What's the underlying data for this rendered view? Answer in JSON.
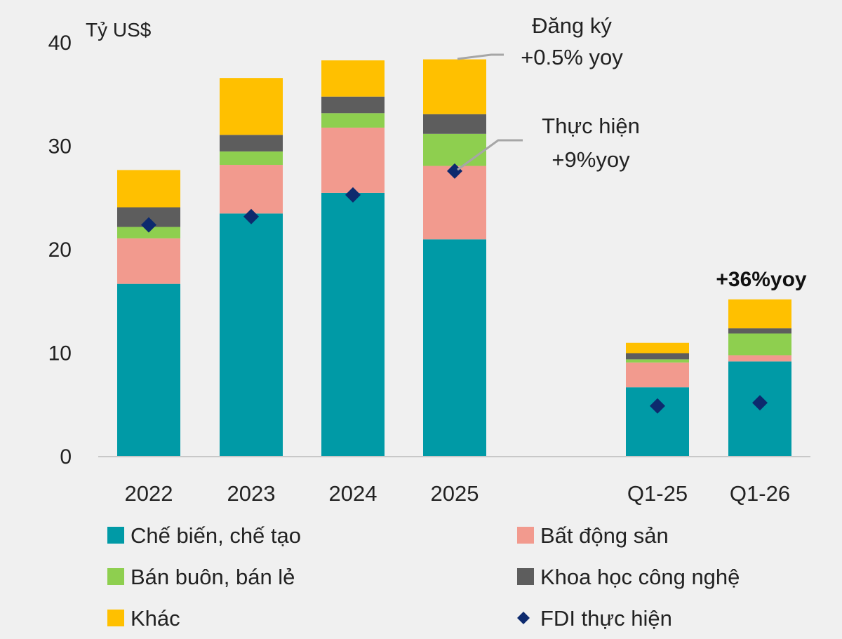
{
  "chart_data": {
    "type": "bar",
    "stacked": true,
    "unit_label": "Tỷ US$",
    "categories": [
      "2022",
      "2023",
      "2024",
      "2025",
      "Q1-25",
      "Q1-26"
    ],
    "ylim": [
      0,
      40
    ],
    "yticks": [
      0,
      10,
      20,
      30,
      40
    ],
    "grid": false,
    "legend_position": "bottom",
    "series": [
      {
        "name": "Chế biến, chế tạo",
        "color": "#009aa6",
        "values": [
          16.7,
          23.5,
          25.5,
          21.0,
          6.7,
          9.2
        ]
      },
      {
        "name": "Bất động sản",
        "color": "#f29a8e",
        "values": [
          4.4,
          4.7,
          6.3,
          7.1,
          2.4,
          0.6
        ]
      },
      {
        "name": "Bán buôn, bán lẻ",
        "color": "#8ecf4f",
        "values": [
          1.1,
          1.3,
          1.4,
          3.1,
          0.3,
          2.1
        ]
      },
      {
        "name": "Khoa học công nghệ",
        "color": "#5d5d5d",
        "values": [
          1.9,
          1.6,
          1.6,
          1.9,
          0.6,
          0.5
        ]
      },
      {
        "name": "Khác",
        "color": "#ffc000",
        "values": [
          3.6,
          5.5,
          3.5,
          5.3,
          1.0,
          2.8
        ]
      }
    ],
    "markers": {
      "name": "FDI thực hiện",
      "color": "#0d2a6e",
      "values": [
        22.4,
        23.2,
        25.3,
        27.6,
        4.9,
        5.2
      ]
    },
    "annotations": {
      "registered_line1": "Đăng ký",
      "registered_line2": "+0.5% yoy",
      "disbursed_line1": "Thực hiện",
      "disbursed_line2": "+9%yoy",
      "q1_growth": "+36%yoy"
    }
  }
}
